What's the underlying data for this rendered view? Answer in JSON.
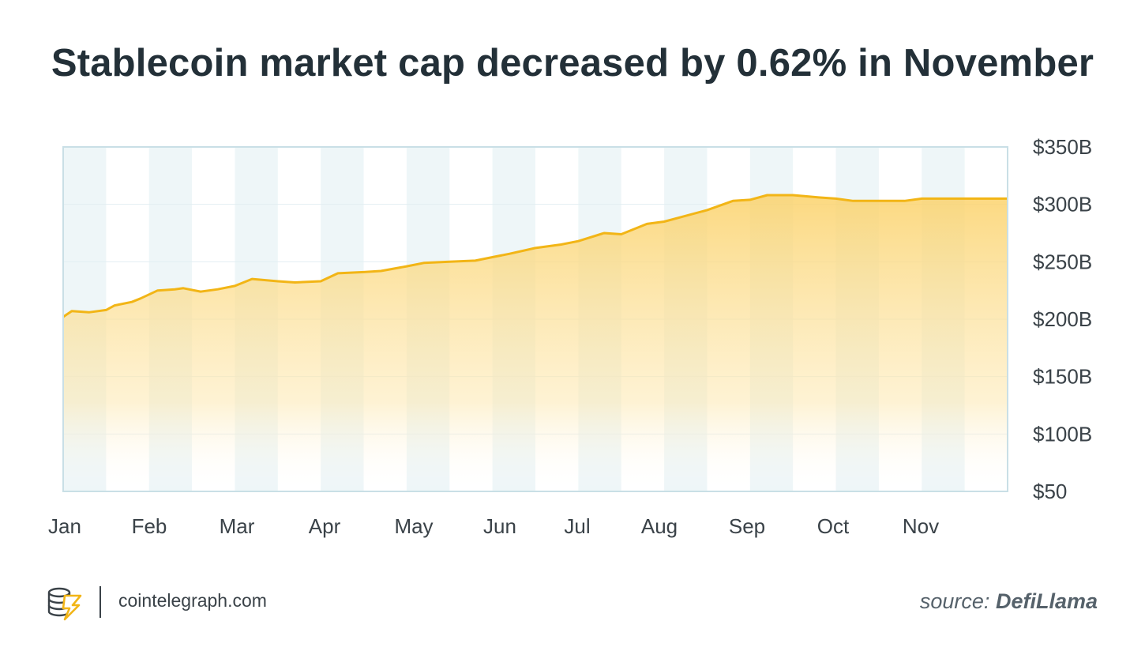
{
  "title": "Stablecoin market cap decreased by 0.62% in November",
  "footer": {
    "site": "cointelegraph.com",
    "source_label": "source:",
    "source_name": "DefiLlama"
  },
  "colors": {
    "line": "#f2b516",
    "fill": "#fcd97a",
    "band": "#eef6f8",
    "frame": "#c9dfe6",
    "text": "#233038",
    "axis_text": "#3a4248"
  },
  "chart_data": {
    "type": "area",
    "title": "Stablecoin market cap decreased by 0.62% in November",
    "x_unit": "month",
    "xlabel": "",
    "ylabel": "",
    "xlim": [
      0,
      11
    ],
    "ylim": [
      50,
      350
    ],
    "month_ticks": [
      "Jan",
      "Feb",
      "Mar",
      "Apr",
      "May",
      "Jun",
      "Jul",
      "Aug",
      "Sep",
      "Oct",
      "Nov"
    ],
    "y_ticks": [
      {
        "value": 350,
        "label": "$350B"
      },
      {
        "value": 300,
        "label": "$300B"
      },
      {
        "value": 250,
        "label": "$250B"
      },
      {
        "value": 200,
        "label": "$200B"
      },
      {
        "value": 150,
        "label": "$150B"
      },
      {
        "value": 100,
        "label": "$100B"
      },
      {
        "value": 50,
        "label": "$50"
      }
    ],
    "grid": "horizontal",
    "legend": "none",
    "series": [
      {
        "x": [
          0.0,
          0.1,
          0.3,
          0.5,
          0.6,
          0.8,
          0.9,
          1.1,
          1.3,
          1.4,
          1.6,
          1.8,
          2.0,
          2.2,
          2.5,
          2.7,
          3.0,
          3.2,
          3.5,
          3.7,
          4.0,
          4.2,
          4.5,
          4.8,
          5.0,
          5.2,
          5.5,
          5.8,
          6.0,
          6.3,
          6.5,
          6.8,
          7.0,
          7.2,
          7.5,
          7.8,
          8.0,
          8.2,
          8.5,
          8.8,
          9.0,
          9.2,
          9.5,
          9.8,
          10.0,
          10.2,
          10.5,
          10.8,
          11.0
        ],
        "y": [
          202,
          207,
          206,
          208,
          212,
          215,
          218,
          225,
          226,
          227,
          224,
          226,
          229,
          235,
          233,
          232,
          233,
          240,
          241,
          242,
          246,
          249,
          250,
          251,
          254,
          257,
          262,
          265,
          268,
          275,
          274,
          283,
          285,
          289,
          295,
          303,
          304,
          308,
          308,
          306,
          305,
          303,
          303,
          303,
          305,
          305,
          305,
          305,
          305
        ]
      }
    ]
  }
}
